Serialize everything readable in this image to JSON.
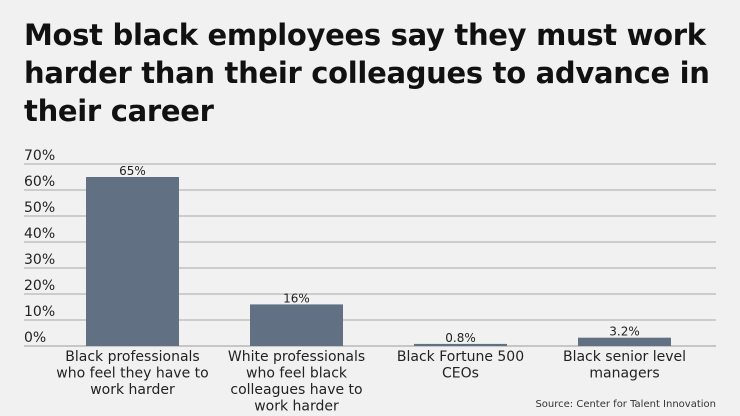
{
  "chart_data": {
    "type": "bar",
    "title": "Most black employees say they must work harder than their colleagues to advance in their career",
    "categories": [
      [
        "Black professionals",
        "who feel they have to",
        "work harder"
      ],
      [
        "White professionals",
        "who feel black",
        "colleagues have to",
        "work harder"
      ],
      [
        "Black Fortune 500",
        "CEOs"
      ],
      [
        "Black senior level",
        "managers"
      ]
    ],
    "values": [
      65,
      16,
      0.8,
      3.2
    ],
    "data_labels": [
      "65%",
      "16%",
      "0.8%",
      "3.2%"
    ],
    "yticks": [
      "0%",
      "10%",
      "20%",
      "30%",
      "40%",
      "50%",
      "60%",
      "70%"
    ],
    "ylim": [
      0,
      70
    ],
    "xlabel": "",
    "ylabel": "",
    "grid": true,
    "bar_color": "#627083",
    "source": "Source: Center for Talent Innovation"
  }
}
